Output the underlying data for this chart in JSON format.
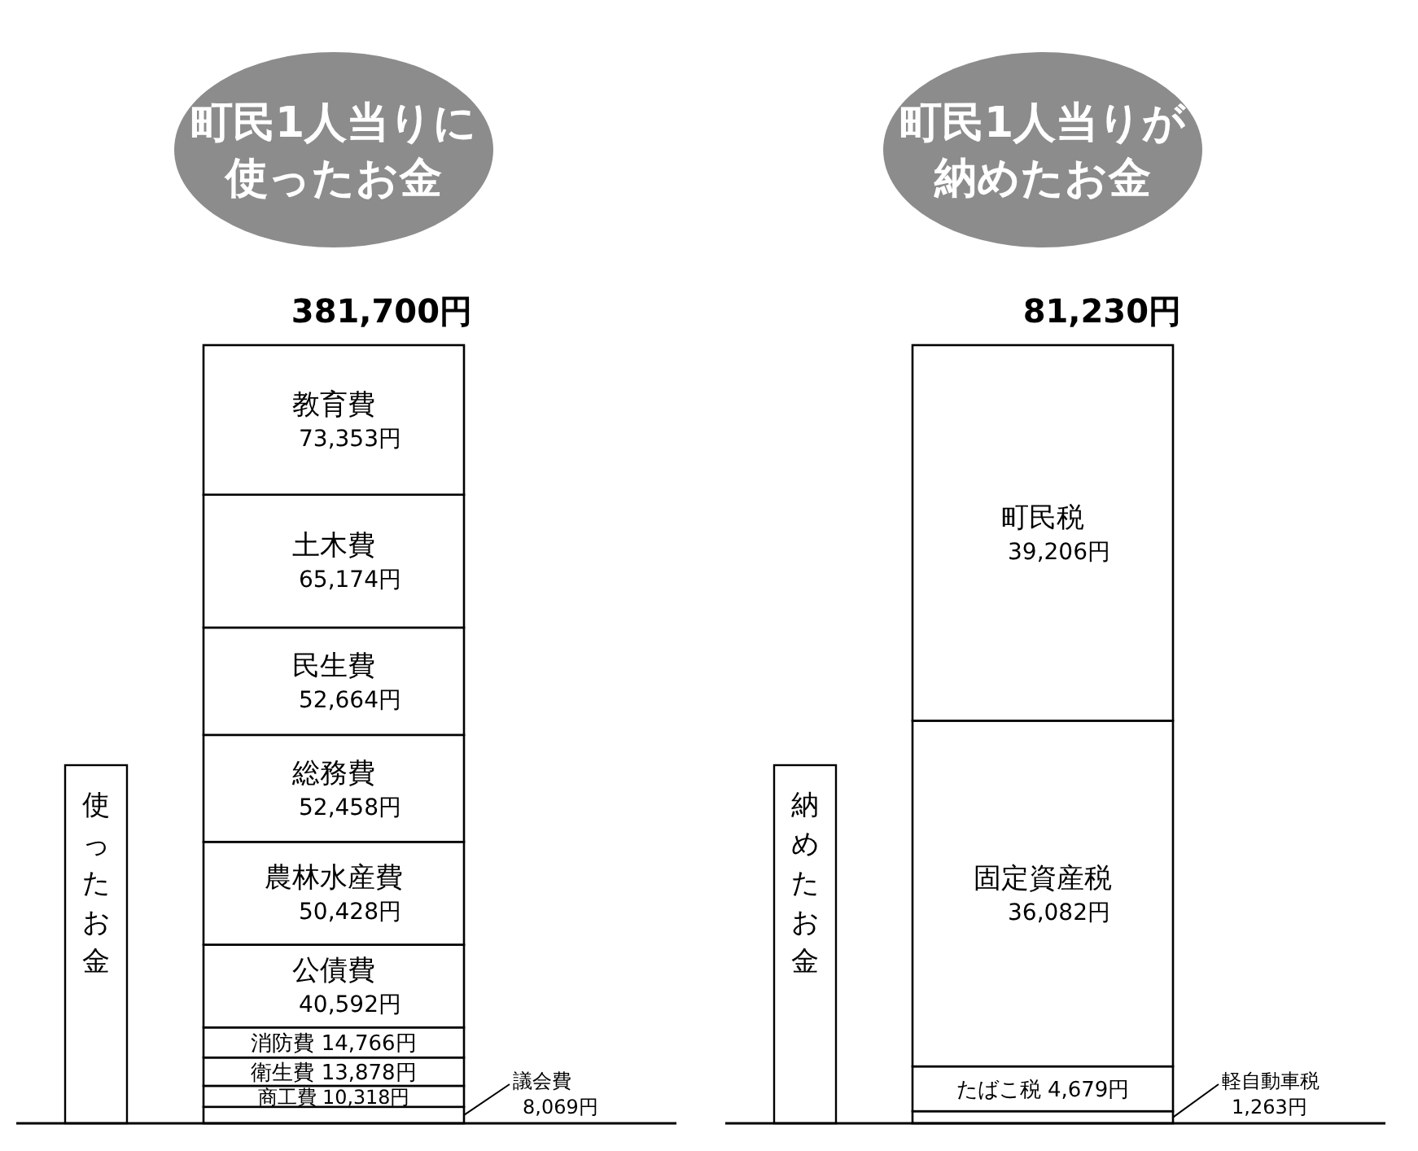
{
  "chart_data": [
    {
      "type": "bar",
      "stacked": true,
      "title": "町民1人当りに使ったお金",
      "categories": [
        "使ったお金"
      ],
      "totals": [
        "381,700円"
      ],
      "series": [
        {
          "name": "議会費",
          "color": "#ffffff",
          "values": [
            8069
          ],
          "value_labels": [
            "8,069円"
          ]
        },
        {
          "name": "商工費",
          "color": "#ffffff",
          "values": [
            10318
          ],
          "value_labels": [
            "10,318円"
          ]
        },
        {
          "name": "衛生費",
          "color": "#ffffff",
          "values": [
            13878
          ],
          "value_labels": [
            "13,878円"
          ]
        },
        {
          "name": "消防費",
          "color": "#ffffff",
          "values": [
            14766
          ],
          "value_labels": [
            "14,766円"
          ]
        },
        {
          "name": "公債費",
          "color": "#ffffff",
          "values": [
            40592
          ],
          "value_labels": [
            "40,592円"
          ]
        },
        {
          "name": "農林水産費",
          "color": "#ffffff",
          "values": [
            50428
          ],
          "value_labels": [
            "50,428円"
          ]
        },
        {
          "name": "総務費",
          "color": "#ffffff",
          "values": [
            52458
          ],
          "value_labels": [
            "52,458円"
          ]
        },
        {
          "name": "民生費",
          "color": "#ffffff",
          "values": [
            52664
          ],
          "value_labels": [
            "52,664円"
          ]
        },
        {
          "name": "土木費",
          "color": "#ffffff",
          "values": [
            65174
          ],
          "value_labels": [
            "65,174円"
          ]
        },
        {
          "name": "教育費",
          "color": "#ffffff",
          "values": [
            73353
          ],
          "value_labels": [
            "73,353円"
          ]
        }
      ]
    },
    {
      "type": "bar",
      "stacked": true,
      "title": "町民1人当りが納めたお金",
      "categories": [
        "納めたお金"
      ],
      "totals": [
        "81,230円"
      ],
      "series": [
        {
          "name": "軽自動車税",
          "color": "#ffffff",
          "values": [
            1263
          ],
          "value_labels": [
            "1,263円"
          ]
        },
        {
          "name": "たばこ税",
          "color": "#ffffff",
          "values": [
            4679
          ],
          "value_labels": [
            "4,679円"
          ]
        },
        {
          "name": "固定資産税",
          "color": "#ffffff",
          "values": [
            36082
          ],
          "value_labels": [
            "36,082円"
          ]
        },
        {
          "name": "町民税",
          "color": "#ffffff",
          "values": [
            39206
          ],
          "value_labels": [
            "39,206円"
          ]
        }
      ]
    }
  ]
}
